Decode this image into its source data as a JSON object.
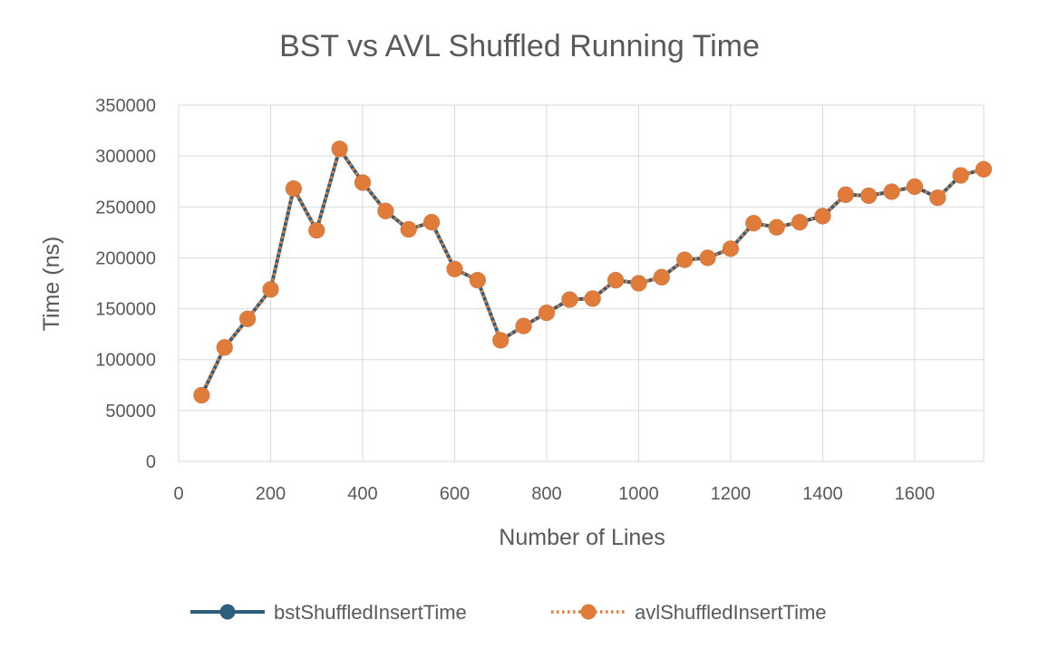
{
  "chart_data": {
    "type": "line",
    "title": "BST vs AVL Shuffled Running Time",
    "xlabel": "Number of Lines",
    "ylabel": "Time (ns)",
    "xlim": [
      0,
      1750
    ],
    "ylim": [
      0,
      350000
    ],
    "xticks": [
      "0",
      "200",
      "400",
      "600",
      "800",
      "1000",
      "1200",
      "1400",
      "1600"
    ],
    "yticks": [
      "0",
      "50000",
      "100000",
      "150000",
      "200000",
      "250000",
      "300000",
      "350000"
    ],
    "grid": true,
    "legend_position": "bottom",
    "x": [
      50,
      100,
      150,
      200,
      250,
      300,
      350,
      400,
      450,
      500,
      550,
      600,
      650,
      700,
      750,
      800,
      850,
      900,
      950,
      1000,
      1050,
      1100,
      1150,
      1200,
      1250,
      1300,
      1350,
      1400,
      1450,
      1500,
      1550,
      1600,
      1650,
      1700,
      1750
    ],
    "series": [
      {
        "name": "bstShuffledInsertTime",
        "color": "#2E5E7E",
        "style": "solid",
        "values": [
          65000,
          112000,
          140000,
          169000,
          268000,
          227000,
          307000,
          274000,
          246000,
          228000,
          235000,
          189000,
          178000,
          119000,
          133000,
          146000,
          159000,
          160000,
          178000,
          175000,
          181000,
          198000,
          200000,
          209000,
          234000,
          230000,
          235000,
          241000,
          262000,
          261000,
          265000,
          270000,
          259000,
          281000,
          287000
        ]
      },
      {
        "name": "avlShuffledInsertTime",
        "color": "#E07B39",
        "style": "dotted",
        "values": [
          65000,
          112000,
          140000,
          169000,
          268000,
          227000,
          307000,
          274000,
          246000,
          228000,
          235000,
          189000,
          178000,
          119000,
          133000,
          146000,
          159000,
          160000,
          178000,
          175000,
          181000,
          198000,
          200000,
          209000,
          234000,
          230000,
          235000,
          241000,
          262000,
          261000,
          265000,
          270000,
          259000,
          281000,
          287000
        ]
      }
    ]
  }
}
